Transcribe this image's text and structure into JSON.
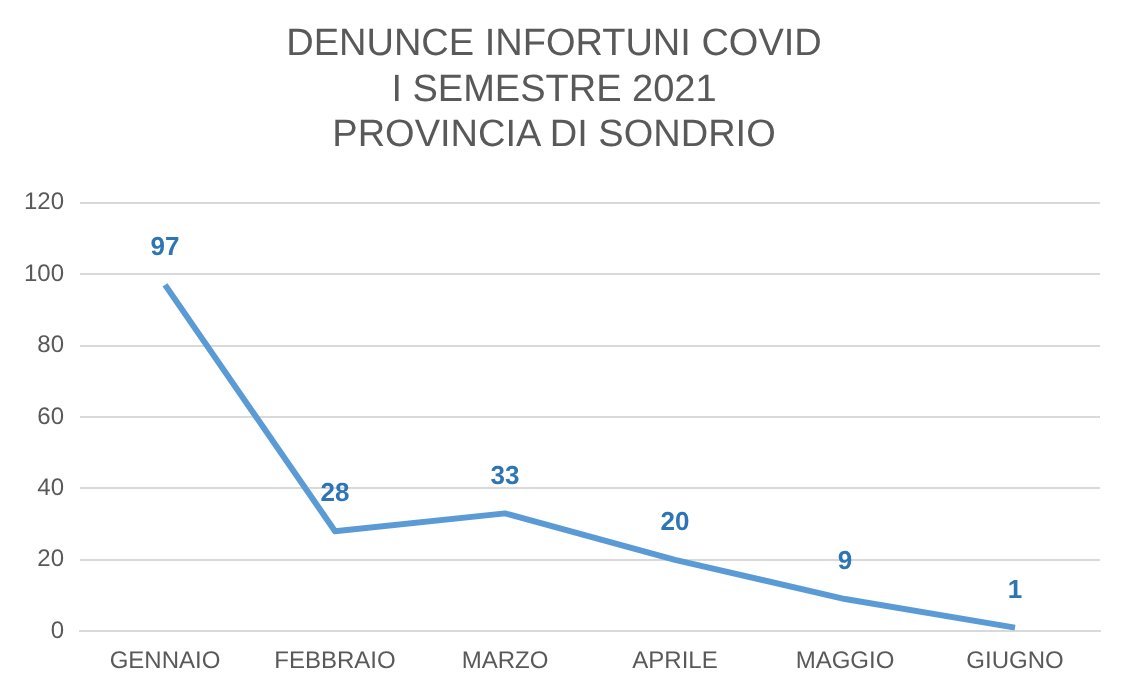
{
  "chart_data": {
    "type": "line",
    "title": "DENUNCE INFORTUNI COVID\nI SEMESTRE 2021\nPROVINCIA DI SONDRIO",
    "categories": [
      "GENNAIO",
      "FEBBRAIO",
      "MARZO",
      "APRILE",
      "MAGGIO",
      "GIUGNO"
    ],
    "series": [
      {
        "color": "#5b9bd5",
        "values": [
          97,
          28,
          33,
          20,
          9,
          1
        ]
      }
    ],
    "ylim": [
      0,
      120
    ],
    "yticks": [
      0,
      20,
      40,
      60,
      80,
      100,
      120
    ],
    "grid": "y",
    "data_labels": true,
    "legend": false,
    "marker": "none"
  }
}
